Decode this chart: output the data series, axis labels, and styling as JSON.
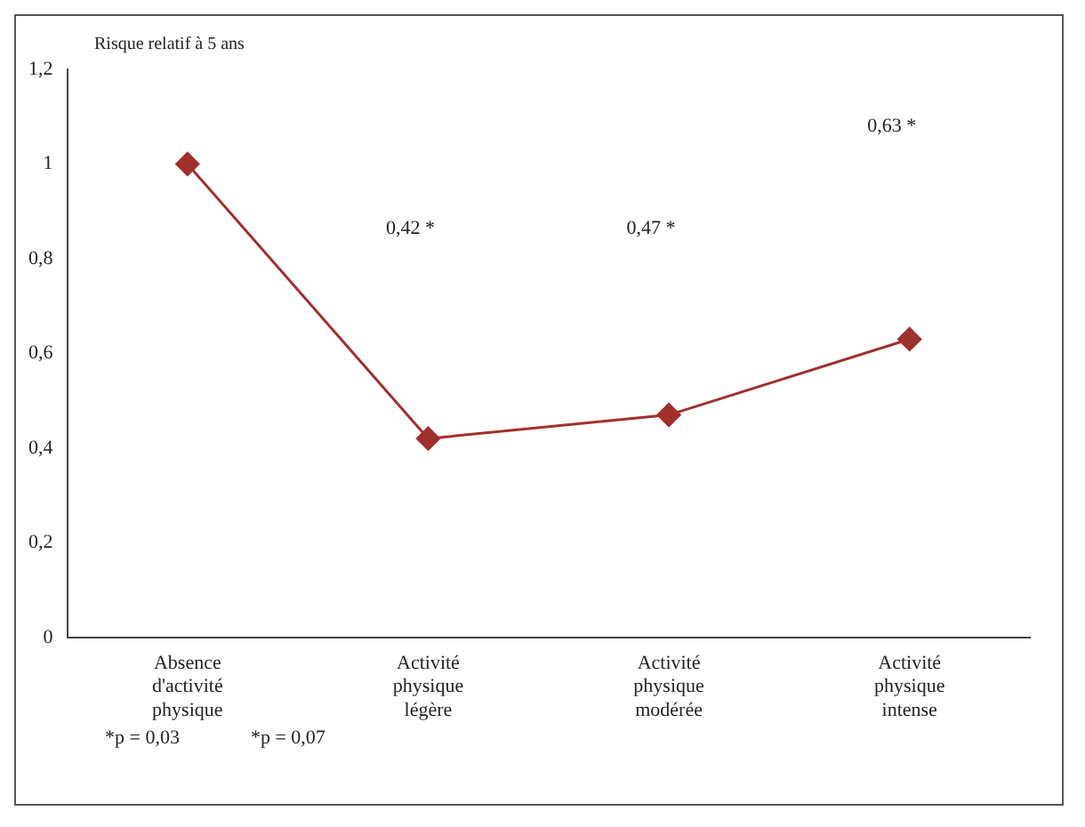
{
  "chart_data": {
    "type": "line",
    "ylabel": "Risque relatif à 5 ans",
    "categories": [
      "Absence d'activité physique",
      "Activité physique légère",
      "Activité physique modérée",
      "Activité physique intense"
    ],
    "series": [
      {
        "color": "#a0302c",
        "values": [
          1,
          0.42,
          0.47,
          0.63
        ]
      }
    ],
    "ylim": [
      0,
      1.2
    ],
    "yticks": [
      0,
      {
        "value": 0.2,
        "label": "0,2"
      },
      {
        "value": 0.4,
        "label": "0,4"
      },
      {
        "value": 0.6,
        "label": "0,6"
      },
      {
        "value": 0.8,
        "label": "0,8"
      },
      1,
      {
        "value": 1.2,
        "label": "1,2"
      }
    ],
    "grid": false,
    "legend": false,
    "marker": "diamond",
    "line_style": "solid",
    "annotations": [
      "0,42 *",
      "0,47 *",
      "0,63 *",
      "*p = 0,03",
      "*p = 0,07"
    ]
  }
}
